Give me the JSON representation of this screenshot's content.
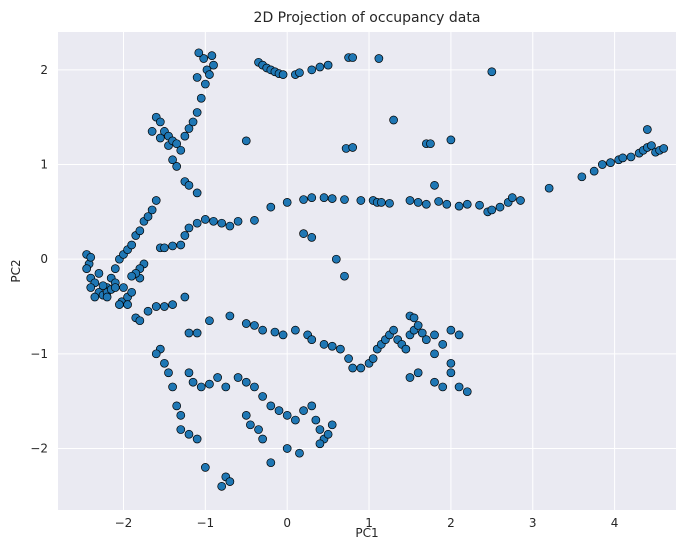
{
  "chart_data": {
    "type": "scatter",
    "title": "2D Projection of occupancy data",
    "xlabel": "PC1",
    "ylabel": "PC2",
    "xlim": [
      -2.8,
      4.75
    ],
    "ylim": [
      -2.65,
      2.4
    ],
    "xticks": [
      -2,
      -1,
      0,
      1,
      2,
      3,
      4
    ],
    "yticks": [
      -2,
      -1,
      0,
      1,
      2
    ],
    "xtick_labels": [
      "−2",
      "−1",
      "0",
      "1",
      "2",
      "3",
      "4"
    ],
    "ytick_labels": [
      "−2",
      "−1",
      "0",
      "1",
      "2"
    ],
    "grid": true,
    "colors": {
      "background": "#EAEAF2",
      "grid": "#FFFFFF",
      "point_fill": "#1F77B4",
      "point_edge": "#000000",
      "text": "#262626"
    },
    "series": [
      {
        "points": [
          [
            -2.45,
            0.05
          ],
          [
            -2.42,
            -0.05
          ],
          [
            -2.4,
            -0.2
          ],
          [
            -2.35,
            -0.25
          ],
          [
            -2.3,
            -0.35
          ],
          [
            -2.25,
            -0.38
          ],
          [
            -2.2,
            -0.3
          ],
          [
            -2.15,
            -0.2
          ],
          [
            -2.1,
            -0.1
          ],
          [
            -2.05,
            0.0
          ],
          [
            -2.0,
            0.05
          ],
          [
            -2.02,
            -0.45
          ],
          [
            -1.95,
            0.1
          ],
          [
            -1.9,
            0.15
          ],
          [
            -1.85,
            0.25
          ],
          [
            -1.8,
            0.3
          ],
          [
            -1.75,
            0.4
          ],
          [
            -1.7,
            0.45
          ],
          [
            -1.65,
            0.52
          ],
          [
            -1.6,
            0.62
          ],
          [
            -1.55,
            0.12
          ],
          [
            -1.5,
            0.12
          ],
          [
            -1.4,
            0.14
          ],
          [
            -1.3,
            0.15
          ],
          [
            -1.25,
            0.25
          ],
          [
            -1.2,
            0.33
          ],
          [
            -1.1,
            0.38
          ],
          [
            -1.0,
            0.42
          ],
          [
            -0.9,
            0.4
          ],
          [
            -0.8,
            0.38
          ],
          [
            -0.7,
            0.35
          ],
          [
            -0.6,
            0.4
          ],
          [
            -0.4,
            0.41
          ],
          [
            -1.25,
            0.82
          ],
          [
            -1.2,
            0.78
          ],
          [
            -1.1,
            0.7
          ],
          [
            -1.4,
            1.05
          ],
          [
            -1.35,
            0.98
          ],
          [
            -1.45,
            1.2
          ],
          [
            -1.55,
            1.28
          ],
          [
            -1.65,
            1.35
          ],
          [
            -1.6,
            1.5
          ],
          [
            -1.55,
            1.45
          ],
          [
            -1.5,
            1.35
          ],
          [
            -1.45,
            1.3
          ],
          [
            -1.4,
            1.25
          ],
          [
            -1.35,
            1.22
          ],
          [
            -1.3,
            1.15
          ],
          [
            -1.25,
            1.3
          ],
          [
            -1.2,
            1.38
          ],
          [
            -1.15,
            1.45
          ],
          [
            -1.1,
            1.55
          ],
          [
            -1.05,
            1.7
          ],
          [
            -1.0,
            1.85
          ],
          [
            -0.98,
            2.0
          ],
          [
            -1.02,
            2.12
          ],
          [
            -1.08,
            2.18
          ],
          [
            -1.1,
            1.92
          ],
          [
            -0.95,
            1.95
          ],
          [
            -0.9,
            2.05
          ],
          [
            -0.92,
            2.15
          ],
          [
            -0.5,
            1.25
          ],
          [
            -0.35,
            2.08
          ],
          [
            -0.3,
            2.05
          ],
          [
            -0.25,
            2.02
          ],
          [
            -0.2,
            2.0
          ],
          [
            -0.15,
            1.98
          ],
          [
            -0.1,
            1.96
          ],
          [
            -0.05,
            1.95
          ],
          [
            0.1,
            1.95
          ],
          [
            0.15,
            1.97
          ],
          [
            0.3,
            2.0
          ],
          [
            0.4,
            2.03
          ],
          [
            0.5,
            2.05
          ],
          [
            0.75,
            2.13
          ],
          [
            0.8,
            2.13
          ],
          [
            1.12,
            2.12
          ],
          [
            2.5,
            1.98
          ],
          [
            0.72,
            1.17
          ],
          [
            0.8,
            1.18
          ],
          [
            1.3,
            1.47
          ],
          [
            1.7,
            1.22
          ],
          [
            1.75,
            1.22
          ],
          [
            2.0,
            1.26
          ],
          [
            1.8,
            0.78
          ],
          [
            -0.2,
            0.55
          ],
          [
            0.0,
            0.6
          ],
          [
            0.2,
            0.63
          ],
          [
            0.3,
            0.65
          ],
          [
            0.45,
            0.65
          ],
          [
            0.55,
            0.64
          ],
          [
            0.7,
            0.63
          ],
          [
            0.9,
            0.62
          ],
          [
            1.05,
            0.62
          ],
          [
            1.1,
            0.6
          ],
          [
            1.15,
            0.6
          ],
          [
            1.25,
            0.59
          ],
          [
            1.5,
            0.62
          ],
          [
            1.6,
            0.6
          ],
          [
            1.7,
            0.58
          ],
          [
            1.85,
            0.61
          ],
          [
            1.95,
            0.58
          ],
          [
            2.1,
            0.56
          ],
          [
            2.2,
            0.58
          ],
          [
            2.35,
            0.57
          ],
          [
            2.45,
            0.5
          ],
          [
            2.5,
            0.52
          ],
          [
            2.6,
            0.55
          ],
          [
            2.7,
            0.6
          ],
          [
            2.75,
            0.65
          ],
          [
            2.85,
            0.62
          ],
          [
            3.2,
            0.75
          ],
          [
            3.6,
            0.87
          ],
          [
            3.75,
            0.93
          ],
          [
            3.85,
            1.0
          ],
          [
            3.95,
            1.02
          ],
          [
            4.05,
            1.05
          ],
          [
            4.1,
            1.07
          ],
          [
            4.2,
            1.08
          ],
          [
            4.3,
            1.12
          ],
          [
            4.35,
            1.15
          ],
          [
            4.4,
            1.18
          ],
          [
            4.45,
            1.2
          ],
          [
            4.5,
            1.13
          ],
          [
            4.55,
            1.15
          ],
          [
            4.6,
            1.17
          ],
          [
            4.4,
            1.37
          ],
          [
            0.2,
            0.27
          ],
          [
            0.3,
            0.23
          ],
          [
            0.6,
            0.0
          ],
          [
            0.7,
            -0.18
          ],
          [
            -2.4,
            -0.3
          ],
          [
            -2.35,
            -0.4
          ],
          [
            -2.2,
            -0.35
          ],
          [
            -2.1,
            -0.25
          ],
          [
            -2.0,
            -0.3
          ],
          [
            -1.95,
            -0.4
          ],
          [
            -1.9,
            -0.35
          ],
          [
            -1.8,
            -0.2
          ],
          [
            -1.75,
            -0.05
          ],
          [
            -1.8,
            -0.1
          ],
          [
            -1.85,
            -0.15
          ],
          [
            -1.9,
            -0.18
          ],
          [
            -1.95,
            -0.48
          ],
          [
            -1.85,
            -0.62
          ],
          [
            -1.8,
            -0.65
          ],
          [
            -1.7,
            -0.55
          ],
          [
            -1.6,
            -0.5
          ],
          [
            -1.5,
            -0.5
          ],
          [
            -1.4,
            -0.48
          ],
          [
            -1.25,
            -0.4
          ],
          [
            -1.55,
            -0.95
          ],
          [
            -1.6,
            -1.0
          ],
          [
            -1.5,
            -1.1
          ],
          [
            -1.45,
            -1.2
          ],
          [
            -1.4,
            -1.35
          ],
          [
            -1.35,
            -1.55
          ],
          [
            -1.3,
            -1.65
          ],
          [
            -1.2,
            -0.78
          ],
          [
            -1.1,
            -0.78
          ],
          [
            -0.95,
            -0.65
          ],
          [
            -0.7,
            -0.6
          ],
          [
            -0.5,
            -0.68
          ],
          [
            -0.4,
            -0.7
          ],
          [
            -0.3,
            -0.75
          ],
          [
            -0.15,
            -0.77
          ],
          [
            -0.05,
            -0.8
          ],
          [
            0.1,
            -0.75
          ],
          [
            0.25,
            -0.8
          ],
          [
            0.3,
            -0.85
          ],
          [
            0.45,
            -0.9
          ],
          [
            0.55,
            -0.92
          ],
          [
            0.65,
            -0.95
          ],
          [
            0.75,
            -1.05
          ],
          [
            0.8,
            -1.15
          ],
          [
            0.9,
            -1.15
          ],
          [
            1.0,
            -1.1
          ],
          [
            1.05,
            -1.05
          ],
          [
            1.1,
            -0.95
          ],
          [
            1.15,
            -0.9
          ],
          [
            1.2,
            -0.85
          ],
          [
            1.25,
            -0.8
          ],
          [
            1.3,
            -0.75
          ],
          [
            1.35,
            -0.85
          ],
          [
            1.4,
            -0.9
          ],
          [
            1.45,
            -0.95
          ],
          [
            1.5,
            -0.8
          ],
          [
            1.55,
            -0.75
          ],
          [
            1.6,
            -0.7
          ],
          [
            1.65,
            -0.78
          ],
          [
            1.7,
            -0.85
          ],
          [
            1.8,
            -0.8
          ],
          [
            1.9,
            -0.9
          ],
          [
            2.0,
            -0.75
          ],
          [
            2.1,
            -0.8
          ],
          [
            1.5,
            -0.6
          ],
          [
            1.55,
            -0.62
          ],
          [
            1.8,
            -1.0
          ],
          [
            2.0,
            -1.1
          ],
          [
            2.0,
            -1.2
          ],
          [
            2.1,
            -1.35
          ],
          [
            2.2,
            -1.4
          ],
          [
            1.9,
            -1.35
          ],
          [
            1.8,
            -1.3
          ],
          [
            1.6,
            -1.2
          ],
          [
            1.5,
            -1.25
          ],
          [
            -1.2,
            -1.2
          ],
          [
            -1.15,
            -1.3
          ],
          [
            -1.05,
            -1.35
          ],
          [
            -0.95,
            -1.32
          ],
          [
            -0.85,
            -1.25
          ],
          [
            -0.75,
            -1.35
          ],
          [
            -0.6,
            -1.25
          ],
          [
            -0.5,
            -1.3
          ],
          [
            -0.4,
            -1.35
          ],
          [
            -0.3,
            -1.45
          ],
          [
            -0.2,
            -1.55
          ],
          [
            -0.1,
            -1.6
          ],
          [
            0.0,
            -1.65
          ],
          [
            0.1,
            -1.7
          ],
          [
            0.2,
            -1.6
          ],
          [
            0.3,
            -1.55
          ],
          [
            0.35,
            -1.7
          ],
          [
            0.4,
            -1.8
          ],
          [
            0.45,
            -1.9
          ],
          [
            0.5,
            -1.85
          ],
          [
            0.55,
            -1.75
          ],
          [
            -0.5,
            -1.65
          ],
          [
            -0.45,
            -1.75
          ],
          [
            -0.35,
            -1.8
          ],
          [
            -0.3,
            -1.9
          ],
          [
            -0.2,
            -2.15
          ],
          [
            0.0,
            -2.0
          ],
          [
            0.15,
            -2.05
          ],
          [
            0.4,
            -1.95
          ],
          [
            -1.3,
            -1.8
          ],
          [
            -1.2,
            -1.85
          ],
          [
            -1.1,
            -1.9
          ],
          [
            -1.0,
            -2.2
          ],
          [
            -0.75,
            -2.3
          ],
          [
            -0.7,
            -2.35
          ],
          [
            -0.8,
            -2.4
          ],
          [
            -2.45,
            -0.1
          ],
          [
            -2.4,
            0.02
          ],
          [
            -2.3,
            -0.15
          ],
          [
            -2.25,
            -0.28
          ],
          [
            -2.2,
            -0.4
          ],
          [
            -2.15,
            -0.32
          ],
          [
            -2.1,
            -0.3
          ],
          [
            -2.05,
            -0.48
          ]
        ]
      }
    ]
  }
}
